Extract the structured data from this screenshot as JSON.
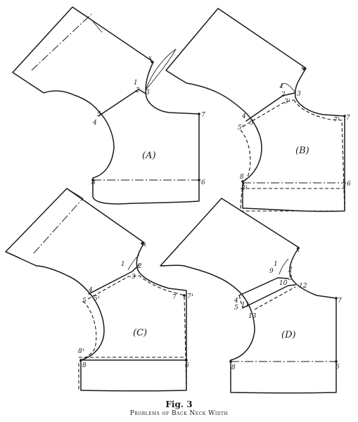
{
  "figure": {
    "number": "Fig. 3",
    "subtitle": "Problems of Back Neck Width"
  },
  "panels": {
    "A": {
      "label": "(A)",
      "points": {
        "x": "x",
        "p1": "1",
        "p2": "2",
        "p3": "3",
        "p4": "4",
        "p5": "5",
        "p6": "6",
        "p7": "7",
        "p8": "8"
      }
    },
    "B": {
      "label": "(B)",
      "points": {
        "x": "x",
        "p1": "1",
        "p2": "2",
        "p3": "3",
        "p3b": "3¹",
        "p4": "4",
        "p5": "5",
        "p5b": "5¹",
        "p6": "6",
        "p7": "7",
        "p7b": "7¹",
        "p8": "8",
        "p8b": "8¹"
      }
    },
    "C": {
      "label": "(C)",
      "points": {
        "x": "x",
        "p1": "1",
        "p2": "2",
        "p3": "3",
        "p4": "4",
        "p5": "5",
        "p5b": "5¹",
        "p6": "6",
        "p7": "7",
        "p7b": "7¹",
        "p8": "8",
        "p8b": "8¹"
      }
    },
    "D": {
      "label": "(D)",
      "points": {
        "x": "x",
        "p1": "1",
        "p2": "2",
        "p3": "3",
        "p4": "4",
        "p5": "5",
        "p6": "6",
        "p7": "7",
        "p8": "8",
        "p9": "9",
        "p10": "10",
        "p11": "11",
        "p12": "12",
        "p13": "13"
      }
    }
  }
}
